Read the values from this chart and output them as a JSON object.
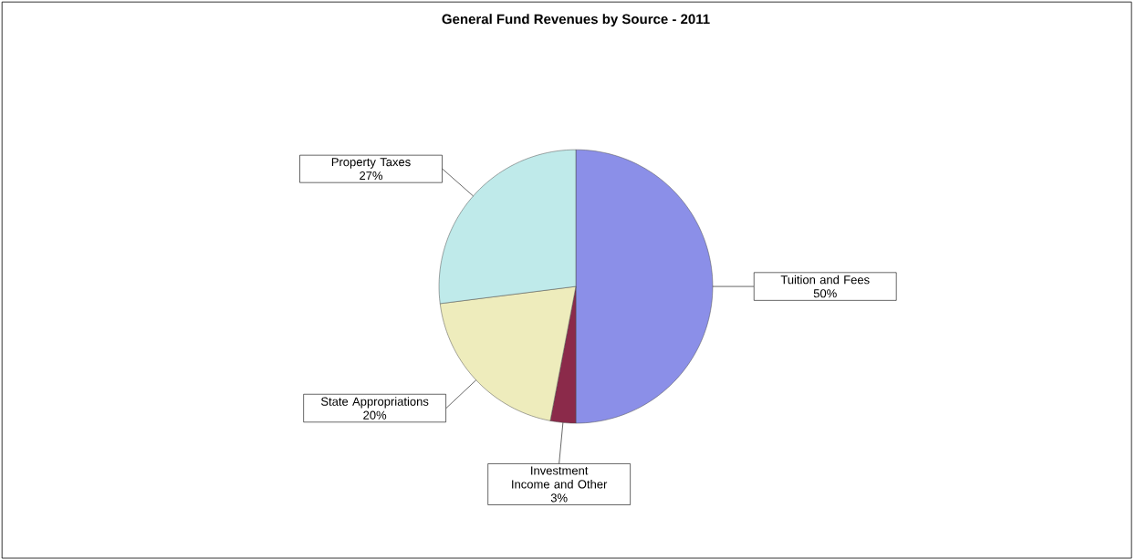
{
  "chart_data": {
    "type": "pie",
    "title": "General Fund Revenues by Source - 2011",
    "categories": [
      "Tuition and Fees",
      "Investment Income and Other",
      "State Appropriations",
      "Property Taxes"
    ],
    "values": [
      50,
      3,
      20,
      27
    ],
    "colors": [
      "#8b8fe8",
      "#8b2a4a",
      "#eeecbc",
      "#bfeaea"
    ],
    "value_labels": [
      "50%",
      "3%",
      "20%",
      "27%"
    ]
  }
}
